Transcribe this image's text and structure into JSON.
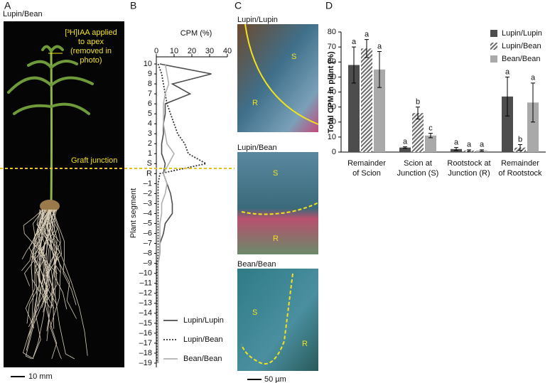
{
  "panels": {
    "a": "A",
    "b": "B",
    "c": "C",
    "d": "D"
  },
  "photo_a": {
    "title": "Lupin/Bean",
    "annotation": [
      "[³H]IAA applied",
      "to apex",
      "(removed in",
      "photo)"
    ],
    "junction": "Graft junction",
    "scale": "10 mm"
  },
  "photo_c": {
    "panels": [
      {
        "title": "Lupin/Lupin",
        "labels": [
          "S",
          "R"
        ]
      },
      {
        "title": "Lupin/Bean",
        "labels": [
          "S",
          "R"
        ]
      },
      {
        "title": "Bean/Bean",
        "labels": [
          "S",
          "R"
        ]
      }
    ],
    "scale": "50 µm"
  },
  "chart_data": [
    {
      "type": "line",
      "xlabel": "CPM (%)",
      "ylabel": "Plant segment",
      "categories": [
        "10",
        "9",
        "8",
        "7",
        "6",
        "5",
        "4",
        "3",
        "2",
        "1",
        "S",
        "R",
        "–1",
        "–2",
        "–3",
        "–4",
        "–5",
        "–6",
        "–7",
        "–8",
        "–9",
        "–10",
        "–11",
        "–12",
        "–13",
        "–14",
        "–15",
        "–16",
        "–17",
        "–18",
        "–19"
      ],
      "xlim": [
        0,
        40
      ],
      "xticks": [
        0,
        10,
        20,
        30,
        40
      ],
      "legend": "lower right",
      "series": [
        {
          "name": "Lupin/Lupin",
          "color": "#4d4d4d",
          "dash": "none",
          "values": [
            2,
            31,
            9,
            19,
            5,
            5,
            4,
            4,
            3,
            3,
            5,
            4,
            6,
            8,
            9,
            9,
            5,
            4,
            2,
            2,
            1,
            1,
            1,
            1,
            1,
            1,
            1,
            1,
            1,
            1,
            1
          ]
        },
        {
          "name": "Lupin/Bean",
          "color": "#333333",
          "dash": "2,2",
          "values": [
            1,
            3,
            4,
            5,
            6,
            8,
            10,
            12,
            16,
            18,
            28,
            2,
            1,
            1,
            1,
            1,
            1,
            1,
            1,
            1,
            0.5,
            0.5,
            0.5,
            0.5,
            0.5,
            0.5,
            0.5,
            0.5,
            0.5,
            0.5,
            0.5
          ]
        },
        {
          "name": "Bean/Bean",
          "color": "#b0b0b0",
          "dash": "none",
          "values": [
            5,
            6,
            7,
            5,
            4,
            4,
            4,
            5,
            6,
            10,
            7,
            4,
            6,
            5,
            3,
            3,
            2,
            2,
            2,
            2,
            1,
            1,
            1,
            1,
            1,
            1,
            1,
            1,
            1,
            1,
            1
          ]
        }
      ]
    },
    {
      "type": "bar",
      "ylabel": "Total CPM in plant (%)",
      "categories": [
        [
          "Remainder",
          "of Scion"
        ],
        [
          "Scion at",
          "Junction (S)"
        ],
        [
          "Rootstock at",
          "Junction (R)"
        ],
        [
          "Remainder",
          "of Rootstock"
        ]
      ],
      "ylim": [
        0,
        80
      ],
      "yticks": [
        0,
        10,
        20,
        30,
        40,
        50,
        60,
        70,
        80
      ],
      "legend": "upper right",
      "series": [
        {
          "name": "Lupin/Lupin",
          "color": "#4d4d4d",
          "hatch": false,
          "values": [
            58,
            3,
            2,
            37
          ],
          "errors": [
            12,
            0.5,
            1,
            13
          ],
          "letters": [
            "a",
            "a",
            "a",
            "a"
          ]
        },
        {
          "name": "Lupin/Bean",
          "color": "#6a6a6a",
          "hatch": true,
          "values": [
            69,
            26,
            1,
            3
          ],
          "errors": [
            6,
            4,
            0.5,
            2
          ],
          "letters": [
            "a",
            "b",
            "a",
            "b"
          ]
        },
        {
          "name": "Bean/Bean",
          "color": "#a9a9a9",
          "hatch": false,
          "values": [
            55,
            11,
            1,
            33
          ],
          "errors": [
            12,
            1.5,
            0.5,
            13
          ],
          "letters": [
            "a",
            "c",
            "a",
            "a"
          ]
        }
      ]
    }
  ]
}
